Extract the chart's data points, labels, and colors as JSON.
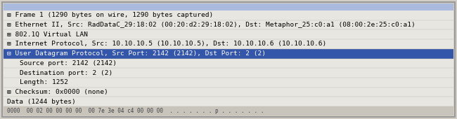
{
  "outer_border_color": "#999999",
  "inner_border_color": "#cccccc",
  "top_bar_color": "#aabbdd",
  "bg_color": "#d4d0c8",
  "row_bg_color": "#e8e6e0",
  "row_highlight_color": "#3355aa",
  "highlight_text_color": "#ffffff",
  "normal_text_color": "#000000",
  "bottom_bar_color": "#888899",
  "bottom_bar_bg": "#c8c4bc",
  "rows": [
    {
      "text": "⊞ Frame 1 (1290 bytes on wire, 1290 bytes captured)",
      "highlight": false,
      "indent": 0
    },
    {
      "text": "⊞ Ethernet II, Src: RadDataC_29:18:02 (00:20:d2:29:18:02), Dst: Metaphor_25:c0:a1 (08:00:2e:25:c0:a1)",
      "highlight": false,
      "indent": 0
    },
    {
      "text": "⊞ 802.1Q Virtual LAN",
      "highlight": false,
      "indent": 0
    },
    {
      "text": "⊞ Internet Protocol, Src: 10.10.10.5 (10.10.10.5), Dst: 10.10.10.6 (10.10.10.6)",
      "highlight": false,
      "indent": 0
    },
    {
      "text": "⊟ User Datagram Protocol, Src Port: 2142 (2142), Dst Port: 2 (2)",
      "highlight": true,
      "indent": 0
    },
    {
      "text": "Source port: 2142 (2142)",
      "highlight": false,
      "indent": 1
    },
    {
      "text": "Destination port: 2 (2)",
      "highlight": false,
      "indent": 1
    },
    {
      "text": "Length: 1252",
      "highlight": false,
      "indent": 1
    },
    {
      "text": "⊞ Checksum: 0x0000 (none)",
      "highlight": false,
      "indent": 0
    },
    {
      "text": "Data (1244 bytes)",
      "highlight": false,
      "indent": 0
    }
  ],
  "bottom_hex": "0000  00 02 00 00 00 00  00 7e 3e 04 c4 00 00 00  . . . . . . . p . . . . . . .",
  "font_size": 6.8,
  "font_family": "monospace"
}
